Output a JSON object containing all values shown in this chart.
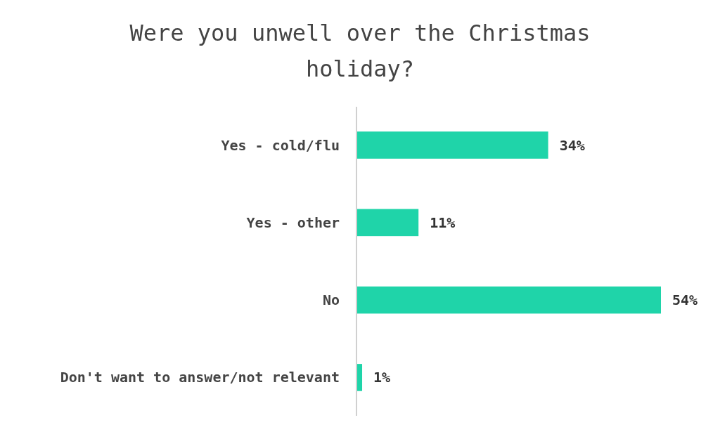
{
  "chart_data": {
    "type": "bar",
    "orientation": "horizontal",
    "title": "Were you unwell over the Christmas holiday?",
    "categories": [
      "Yes - cold/flu",
      "Yes - other",
      "No",
      "Don't want to answer/not relevant"
    ],
    "values": [
      34,
      11,
      54,
      1
    ],
    "value_labels": [
      "34%",
      "11%",
      "54%",
      "1%"
    ],
    "color": "#1fd4a9"
  }
}
